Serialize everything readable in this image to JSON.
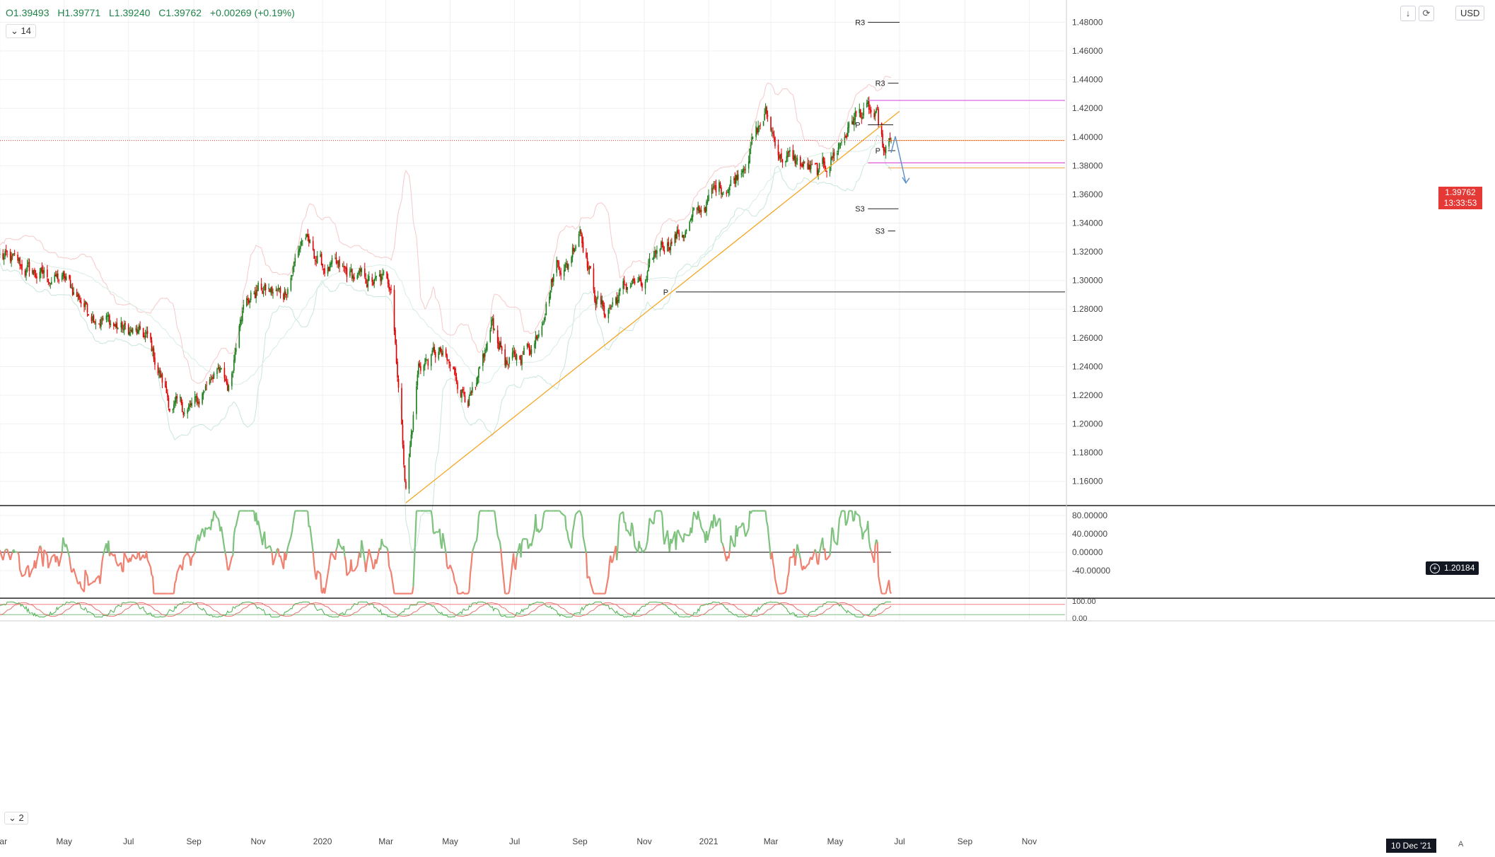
{
  "header": {
    "open": "O1.39493",
    "high": "H1.39771",
    "low": "L1.39240",
    "close": "C1.39762",
    "change": "+0.00269 (+0.19%)",
    "interval": "14",
    "interval2": "2",
    "currency": "USD",
    "down_arrow_icon": "arrow-down-icon",
    "refresh_icon": "refresh-icon"
  },
  "colors": {
    "up": "#1a7d1a",
    "down": "#e00000",
    "trend": "#f5a623",
    "magenta": "#e066e0",
    "orange_line": "#f0a040",
    "rsi_up": "#7ec27e",
    "rsi_down": "#f08070"
  },
  "price_tag": {
    "price": "1.39762",
    "countdown": "13:33:53"
  },
  "crosshair_tag": {
    "price": "1.20184",
    "icon": "plus-circle-icon"
  },
  "date_tag": "10 Dec '21",
  "auto_label": "A",
  "chart_data": [
    {
      "type": "candlestick",
      "y_axis_ticks": [
        "1.48000",
        "1.46000",
        "1.44000",
        "1.42000",
        "1.40000",
        "1.38000",
        "1.36000",
        "1.34000",
        "1.32000",
        "1.30000",
        "1.28000",
        "1.26000",
        "1.24000",
        "1.22000",
        "1.20000",
        "1.18000",
        "1.16000"
      ],
      "ylim": [
        1.1436,
        1.4955
      ],
      "x_axis_ticks": [
        "Mar",
        "May",
        "Jul",
        "Sep",
        "Nov",
        "2020",
        "Mar",
        "May",
        "Jul",
        "Sep",
        "Nov",
        "2021",
        "Mar",
        "May",
        "Jul",
        "Sep",
        "Nov"
      ],
      "last_price": 1.39762,
      "pivot_labels": [
        {
          "label": "R3",
          "price": 1.48
        },
        {
          "label": "R3",
          "price": 1.4375
        },
        {
          "label": "P",
          "price": 1.4085
        },
        {
          "label": "P",
          "price": 1.3905
        },
        {
          "label": "S3",
          "price": 1.35
        },
        {
          "label": "S3",
          "price": 1.3345
        },
        {
          "label": "P",
          "price": 1.292
        }
      ],
      "close_path": [
        [
          "2019-03-01",
          1.317
        ],
        [
          "2019-04-01",
          1.305
        ],
        [
          "2019-05-01",
          1.3
        ],
        [
          "2019-05-25",
          1.28
        ],
        [
          "2019-06-20",
          1.268
        ],
        [
          "2019-07-10",
          1.262
        ],
        [
          "2019-07-20",
          1.258
        ],
        [
          "2019-08-10",
          1.212
        ],
        [
          "2019-08-25",
          1.21
        ],
        [
          "2019-09-05",
          1.214
        ],
        [
          "2019-09-20",
          1.24
        ],
        [
          "2019-10-05",
          1.224
        ],
        [
          "2019-10-15",
          1.282
        ],
        [
          "2019-11-01",
          1.294
        ],
        [
          "2019-11-25",
          1.29
        ],
        [
          "2019-12-13",
          1.33
        ],
        [
          "2020-01-01",
          1.31
        ],
        [
          "2020-01-20",
          1.305
        ],
        [
          "2020-02-20",
          1.298
        ],
        [
          "2020-03-06",
          1.3
        ],
        [
          "2020-03-20",
          1.157
        ],
        [
          "2020-04-01",
          1.24
        ],
        [
          "2020-04-20",
          1.25
        ],
        [
          "2020-05-15",
          1.222
        ],
        [
          "2020-05-25",
          1.218
        ],
        [
          "2020-06-10",
          1.27
        ],
        [
          "2020-06-25",
          1.24
        ],
        [
          "2020-07-20",
          1.258
        ],
        [
          "2020-08-10",
          1.313
        ],
        [
          "2020-08-20",
          1.31
        ],
        [
          "2020-09-01",
          1.34
        ],
        [
          "2020-09-15",
          1.29
        ],
        [
          "2020-09-25",
          1.278
        ],
        [
          "2020-10-20",
          1.3
        ],
        [
          "2020-11-01",
          1.293
        ],
        [
          "2020-11-15",
          1.325
        ],
        [
          "2020-12-10",
          1.335
        ],
        [
          "2020-12-20",
          1.345
        ],
        [
          "2021-01-10",
          1.365
        ],
        [
          "2021-01-25",
          1.37
        ],
        [
          "2021-02-24",
          1.416
        ],
        [
          "2021-03-10",
          1.388
        ],
        [
          "2021-04-01",
          1.38
        ],
        [
          "2021-04-15",
          1.373
        ],
        [
          "2021-05-01",
          1.39
        ],
        [
          "2021-05-20",
          1.415
        ],
        [
          "2021-06-01",
          1.418
        ],
        [
          "2021-06-10",
          1.41
        ],
        [
          "2021-06-17",
          1.385
        ],
        [
          "2021-06-20",
          1.39
        ],
        [
          "2021-06-23",
          1.3976
        ]
      ]
    },
    {
      "type": "line",
      "name": "",
      "y_axis_ticks": [
        "80.00000",
        "40.00000",
        "0.00000",
        "-40.00000"
      ],
      "ylim": [
        -100,
        100
      ]
    },
    {
      "type": "line",
      "y_axis_ticks": [
        "100.00",
        "0.00"
      ]
    }
  ]
}
